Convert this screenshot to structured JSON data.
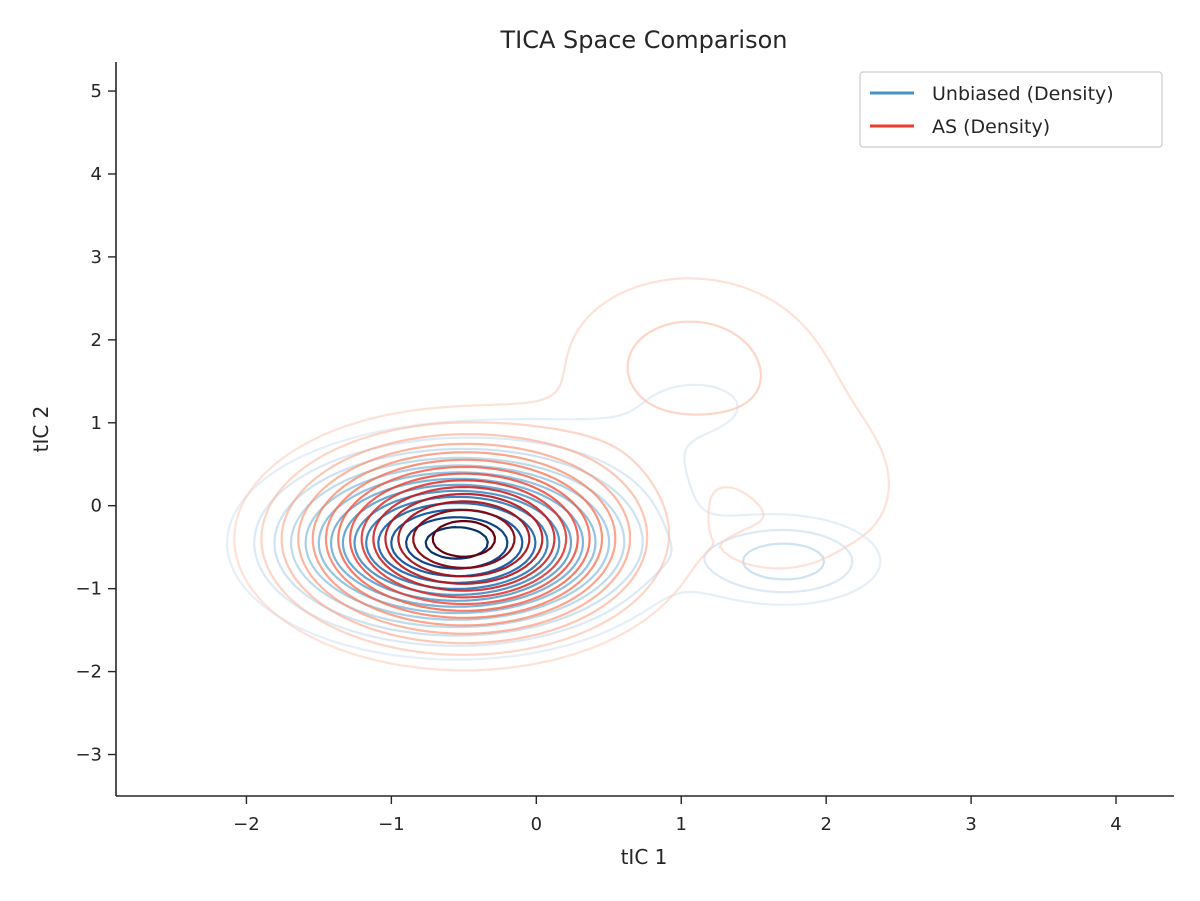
{
  "chart_data": {
    "type": "contour",
    "title": "TICA Space Comparison",
    "xlabel": "tIC 1",
    "ylabel": "tIC 2",
    "xlim": [
      -2.9,
      4.4
    ],
    "ylim": [
      -3.5,
      5.35
    ],
    "xticks": [
      -2,
      -1,
      0,
      1,
      2,
      3,
      4
    ],
    "yticks": [
      -3,
      -2,
      -1,
      0,
      1,
      2,
      3,
      4,
      5
    ],
    "xtick_labels": [
      "−2",
      "−1",
      "0",
      "1",
      "2",
      "3",
      "4"
    ],
    "ytick_labels": [
      "−3",
      "−2",
      "−1",
      "0",
      "1",
      "2",
      "3",
      "4",
      "5"
    ],
    "grid": false,
    "legend_position": "top-right",
    "series": [
      {
        "name": "Unbiased (Density)",
        "color": "#4292c6",
        "colormap": "Blues",
        "levels": 14,
        "modes": [
          {
            "x": -0.55,
            "y": -0.45,
            "sx": 0.62,
            "sy": 0.55,
            "w": 1.0
          },
          {
            "x": 1.72,
            "y": -0.68,
            "sx": 0.38,
            "sy": 0.3,
            "w": 0.16
          },
          {
            "x": 1.1,
            "y": 1.2,
            "sx": 1.0,
            "sy": 0.9,
            "w": 0.04
          }
        ]
      },
      {
        "name": "AS (Density)",
        "color": "#ef3b2c",
        "colormap": "Reds",
        "levels": 14,
        "modes": [
          {
            "x": -0.5,
            "y": -0.4,
            "sx": 0.62,
            "sy": 0.62,
            "w": 1.0
          },
          {
            "x": 1.05,
            "y": 1.7,
            "sx": 0.6,
            "sy": 0.75,
            "w": 0.1
          },
          {
            "x": 2.05,
            "y": 0.2,
            "sx": 0.5,
            "sy": 0.9,
            "w": 0.05
          },
          {
            "x": 1.6,
            "y": -0.55,
            "sx": 0.22,
            "sy": 0.18,
            "w": 0.03
          }
        ]
      }
    ]
  }
}
